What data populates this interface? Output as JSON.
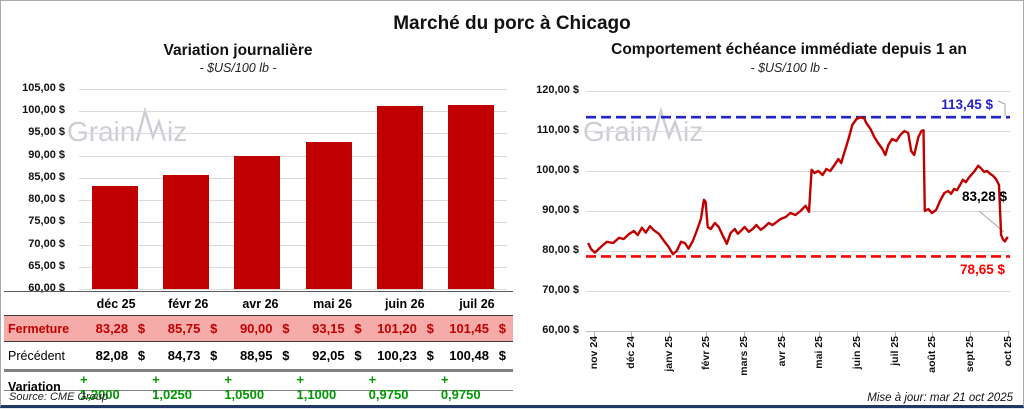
{
  "page": {
    "title": "Marché du porc à Chicago",
    "source_note": "Source: CME Group",
    "updated_note": "Mise à jour: mar 21 oct 2025",
    "watermark": {
      "prefix": "Grain",
      "suffix": "iz"
    }
  },
  "colors": {
    "series_red": "#C00000",
    "bar_red": "#C00000",
    "max_line_blue": "#2323C8",
    "min_line_red": "#FE0000",
    "positive_green": "#009700",
    "fermeture_bg": "#F5ACA9",
    "fermeture_text": "#C00000",
    "grid": "#DADADA",
    "watermark_gray": "#C9CDD3",
    "frame_bottom": "#1F3864"
  },
  "table": {
    "columns": [
      "déc 25",
      "févr 26",
      "avr 26",
      "mai 26",
      "juin 26",
      "juil 26"
    ],
    "rows": [
      {
        "label": "Fermeture",
        "style": "fermeture",
        "suffix": "$",
        "values": [
          "83,28",
          "85,75",
          "90,00",
          "93,15",
          "101,20",
          "101,45"
        ]
      },
      {
        "label": "Précédent",
        "style": "precedent",
        "suffix": "$",
        "values": [
          "82,08",
          "84,73",
          "88,95",
          "92,05",
          "100,23",
          "100,48"
        ]
      },
      {
        "label": "Variation",
        "style": "variation",
        "suffix": "",
        "values": [
          "+ 1,2000",
          "+ 1,0250",
          "+ 1,0500",
          "+ 1,1000",
          "+ 0,9750",
          "+ 0,9750"
        ]
      }
    ]
  },
  "chart_data": [
    {
      "type": "bar",
      "title": "Variation journalière",
      "subtitle": "- $US/100 lb -",
      "categories": [
        "déc 25",
        "févr 26",
        "avr 26",
        "mai 26",
        "juin 26",
        "juil 26"
      ],
      "values": [
        83.28,
        85.75,
        90.0,
        93.15,
        101.2,
        101.45
      ],
      "ylim": [
        60,
        105
      ],
      "ytick_labels": [
        "105,00 $",
        "100,00 $",
        "95,00 $",
        "90,00 $",
        "85,00 $",
        "80,00 $",
        "75,00 $",
        "70,00 $",
        "65,00 $",
        "60,00 $"
      ],
      "grid": true,
      "bar_color": "#C00000"
    },
    {
      "type": "line",
      "title": "Comportement échéance immédiate depuis 1 an",
      "subtitle": "- $US/100 lb -",
      "x_tick_labels": [
        "nov 24",
        "déc 24",
        "janv 25",
        "févr 25",
        "mars 25",
        "avr 25",
        "mai 25",
        "juin 25",
        "juil 25",
        "août 25",
        "sept 25",
        "oct 25"
      ],
      "ylim": [
        60,
        120
      ],
      "ytick_labels": [
        "120,00 $",
        "110,00 $",
        "100,00 $",
        "90,00 $",
        "80,00 $",
        "70,00 $",
        "60,00 $"
      ],
      "grid": true,
      "series": [
        {
          "name": "échéance immédiate",
          "color": "#C00000",
          "points": [
            [
              0.5,
              82
            ],
            [
              1.2,
              80.5
            ],
            [
              2.1,
              79.6
            ],
            [
              3.5,
              81
            ],
            [
              4.9,
              82.3
            ],
            [
              6.4,
              82
            ],
            [
              7.8,
              83.3
            ],
            [
              8.9,
              83
            ],
            [
              10.1,
              84.2
            ],
            [
              11.3,
              85
            ],
            [
              12.2,
              84
            ],
            [
              13.2,
              85.8
            ],
            [
              14.1,
              84.6
            ],
            [
              15.1,
              86.2
            ],
            [
              16,
              85.2
            ],
            [
              17.2,
              84.3
            ],
            [
              18.4,
              82.5
            ],
            [
              19.5,
              81
            ],
            [
              20.5,
              79.2
            ],
            [
              21.4,
              80
            ],
            [
              22.4,
              82.3
            ],
            [
              23.3,
              82
            ],
            [
              24.2,
              80.6
            ],
            [
              25.2,
              82.5
            ],
            [
              26.1,
              85
            ],
            [
              27.1,
              88
            ],
            [
              27.8,
              92.8
            ],
            [
              28.2,
              92.3
            ],
            [
              28.7,
              86
            ],
            [
              29.4,
              85.5
            ],
            [
              30.4,
              87
            ],
            [
              31.3,
              86
            ],
            [
              32.2,
              84
            ],
            [
              33.2,
              81.8
            ],
            [
              34.1,
              84.5
            ],
            [
              35.1,
              85.5
            ],
            [
              35.8,
              84.3
            ],
            [
              36.5,
              85
            ],
            [
              37.4,
              86
            ],
            [
              38.4,
              84.8
            ],
            [
              39.3,
              85.5
            ],
            [
              40.2,
              86.5
            ],
            [
              41.2,
              85.3
            ],
            [
              42.1,
              86
            ],
            [
              43.1,
              87
            ],
            [
              44,
              86.5
            ],
            [
              44.9,
              87.2
            ],
            [
              45.9,
              88
            ],
            [
              47.1,
              88.5
            ],
            [
              48.2,
              89.5
            ],
            [
              49.4,
              89
            ],
            [
              50.6,
              90
            ],
            [
              51.8,
              91.3
            ],
            [
              52.6,
              89.8
            ],
            [
              53.2,
              100.3
            ],
            [
              53.9,
              99.5
            ],
            [
              54.8,
              100
            ],
            [
              55.8,
              99
            ],
            [
              56.7,
              100.5
            ],
            [
              57.6,
              100
            ],
            [
              58.6,
              101.5
            ],
            [
              59.5,
              103
            ],
            [
              60.2,
              102
            ],
            [
              60.9,
              104.5
            ],
            [
              61.9,
              108
            ],
            [
              62.8,
              111.5
            ],
            [
              63.8,
              113
            ],
            [
              64.7,
              113.4
            ],
            [
              65.6,
              113.2
            ],
            [
              66.1,
              112
            ],
            [
              67.1,
              110.5
            ],
            [
              68,
              108.5
            ],
            [
              68.9,
              107
            ],
            [
              69.9,
              105.5
            ],
            [
              70.6,
              104
            ],
            [
              71.3,
              106.5
            ],
            [
              72.2,
              108
            ],
            [
              73.2,
              107.5
            ],
            [
              74.1,
              109
            ],
            [
              75.1,
              110
            ],
            [
              76,
              109.5
            ],
            [
              76.7,
              105
            ],
            [
              77.4,
              104
            ],
            [
              78.4,
              108.5
            ],
            [
              79.1,
              110
            ],
            [
              79.6,
              110.2
            ],
            [
              79.9,
              90
            ],
            [
              80.7,
              90.5
            ],
            [
              81.6,
              89.5
            ],
            [
              82.6,
              90.3
            ],
            [
              83.5,
              92.5
            ],
            [
              84.5,
              94.5
            ],
            [
              85.4,
              95
            ],
            [
              86.1,
              94.3
            ],
            [
              86.8,
              95.5
            ],
            [
              87.5,
              95.2
            ],
            [
              88.2,
              96.5
            ],
            [
              88.9,
              97.8
            ],
            [
              89.6,
              97.2
            ],
            [
              90.4,
              98.5
            ],
            [
              91.1,
              99.3
            ],
            [
              91.8,
              100.2
            ],
            [
              92.5,
              101.3
            ],
            [
              93.2,
              100.6
            ],
            [
              93.9,
              99.8
            ],
            [
              94.6,
              100
            ],
            [
              95.3,
              99.3
            ],
            [
              96,
              98.8
            ],
            [
              96.7,
              98
            ],
            [
              97.4,
              96.5
            ],
            [
              97.9,
              84
            ],
            [
              98.4,
              82.8
            ],
            [
              98.8,
              82.4
            ],
            [
              99.3,
              83.3
            ],
            [
              99.6,
              83.28
            ]
          ]
        }
      ],
      "annotations": {
        "max": {
          "value": 113.45,
          "label": "113,45 $",
          "color": "#2323C8"
        },
        "min": {
          "value": 78.65,
          "label": "78,65 $",
          "color": "#FE0000"
        },
        "last": {
          "value": 83.28,
          "label": "83,28 $",
          "color": "#000000"
        }
      }
    }
  ]
}
